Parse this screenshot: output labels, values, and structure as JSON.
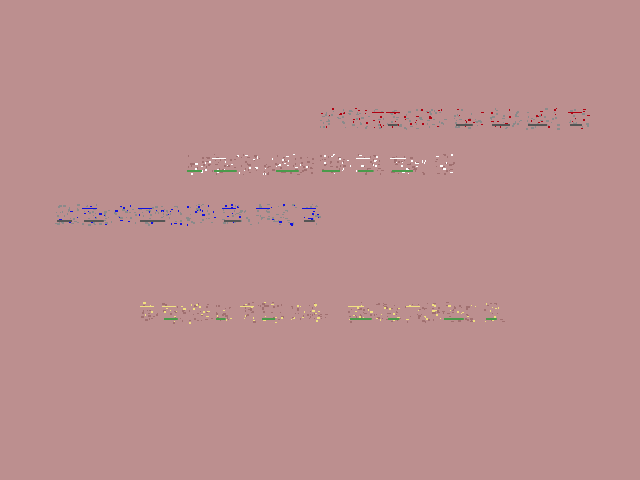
{
  "background": "#bc8f8f",
  "rows": [
    {
      "accent": "#b00010",
      "glyph": "#8a8a8a",
      "underline": "#555555"
    },
    {
      "accent": "#ffffff",
      "glyph": "#a07070",
      "underline": "#4a9a4a"
    },
    {
      "accent": "#1010e0",
      "glyph": "#8a8a8a",
      "underline": "#555555"
    },
    {
      "accent": "#f0e080",
      "glyph": "#a07070",
      "underline": "#4a9a4a"
    }
  ]
}
